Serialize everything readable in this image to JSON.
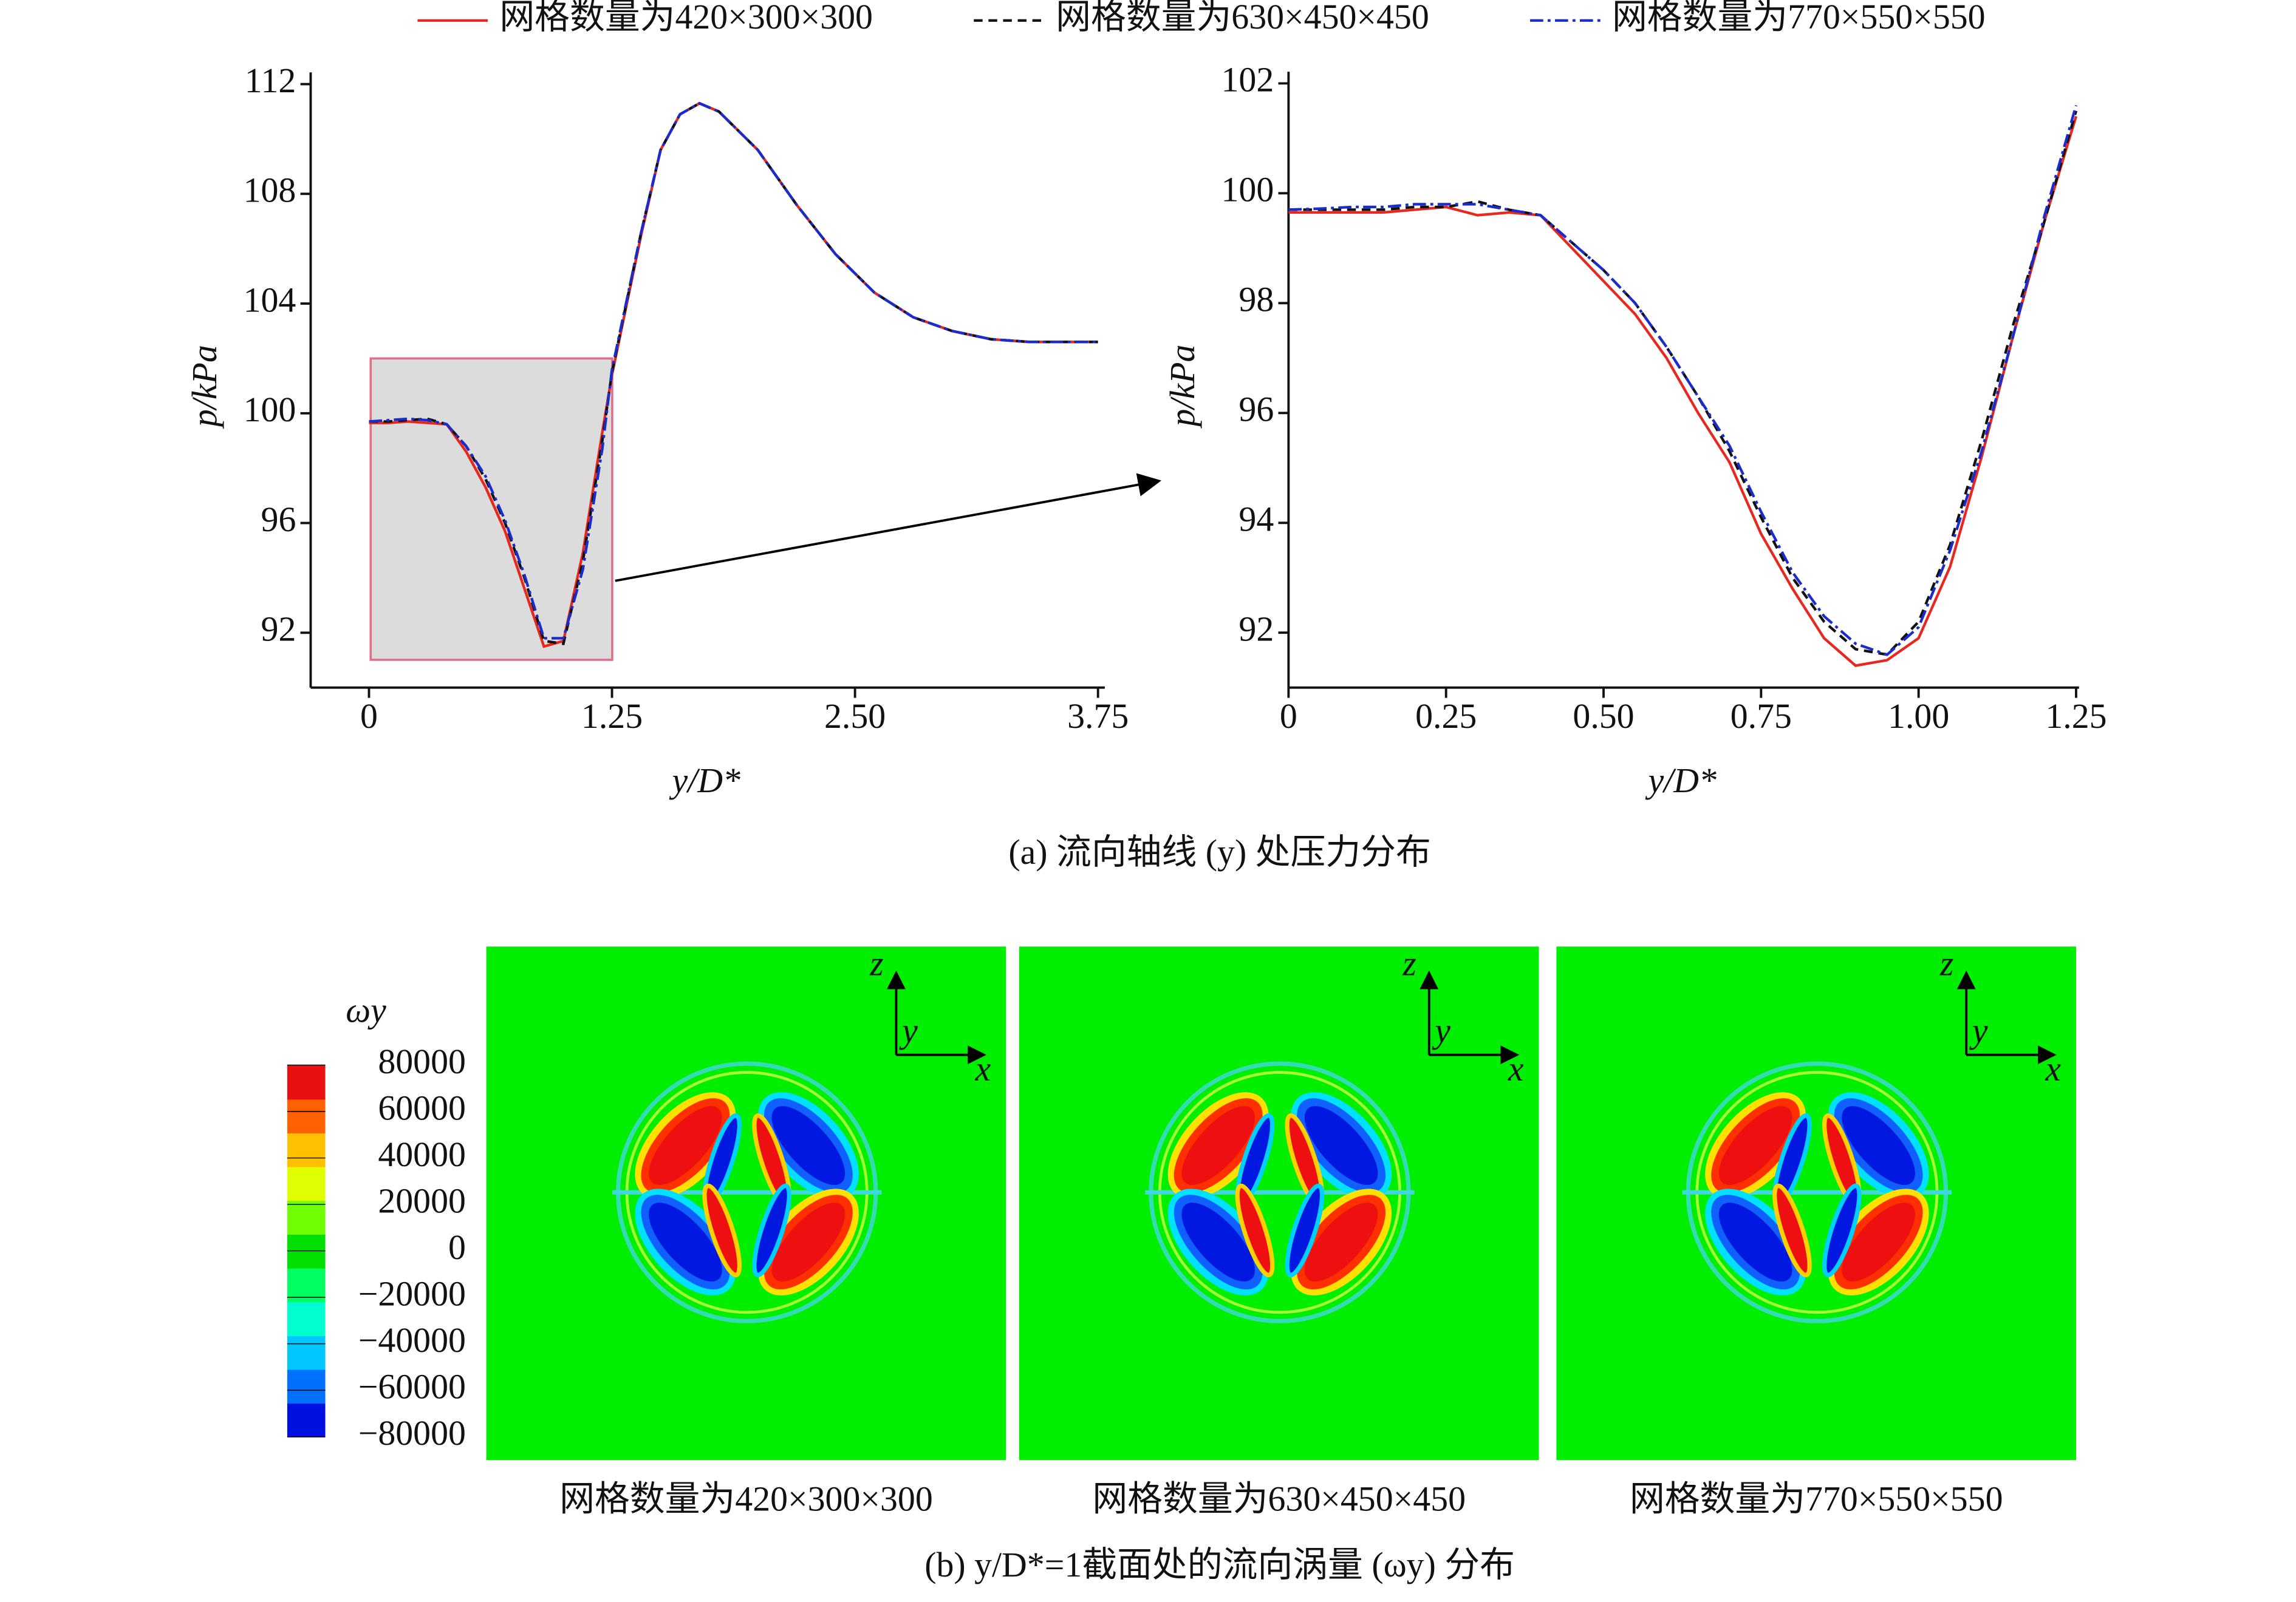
{
  "chart_data": [
    {
      "type": "line",
      "xlabel": "y/D*",
      "ylabel": "p/kPa",
      "caption": "(a) 流向轴线 (y) 处压力分布",
      "xlim": [
        -0.3,
        3.77
      ],
      "ylim": [
        90,
        112
      ],
      "xticks": [
        0,
        1.25,
        {
          "value": 2.5,
          "label": "2.50"
        },
        3.75
      ],
      "yticks": [
        92,
        96,
        100,
        104,
        108,
        112
      ],
      "x": [
        0,
        0.1,
        0.2,
        0.3,
        0.4,
        0.5,
        0.6,
        0.7,
        0.8,
        0.9,
        1.0,
        1.1,
        1.2,
        1.25,
        1.4,
        1.5,
        1.6,
        1.7,
        1.8,
        2.0,
        2.2,
        2.4,
        2.6,
        2.8,
        3.0,
        3.2,
        3.4,
        3.6,
        3.75
      ],
      "series": [
        {
          "name": "网格数量为420×300×300",
          "color": "#e8281e",
          "style": "solid",
          "values": [
            99.65,
            99.65,
            99.7,
            99.65,
            99.6,
            98.6,
            97.3,
            95.7,
            93.6,
            91.5,
            91.7,
            94.9,
            99.3,
            101.4,
            106.5,
            109.6,
            110.9,
            111.3,
            111.0,
            109.6,
            107.6,
            105.8,
            104.4,
            103.5,
            103.0,
            102.7,
            102.6,
            102.6,
            102.6
          ]
        },
        {
          "name": "网格数量为630×450×450",
          "color": "#111111",
          "style": "dashed",
          "values": [
            99.7,
            99.7,
            99.75,
            99.8,
            99.6,
            98.8,
            97.6,
            96.0,
            94.0,
            91.7,
            91.6,
            94.6,
            99.0,
            101.5,
            106.6,
            109.6,
            110.9,
            111.3,
            111.0,
            109.6,
            107.6,
            105.8,
            104.4,
            103.5,
            103.0,
            102.7,
            102.6,
            102.6,
            102.6
          ]
        },
        {
          "name": "网格数量为770×550×550",
          "color": "#1a2ccc",
          "style": "dashdot",
          "values": [
            99.7,
            99.75,
            99.8,
            99.75,
            99.6,
            98.8,
            97.7,
            96.1,
            94.1,
            91.8,
            91.8,
            94.3,
            98.7,
            101.6,
            106.6,
            109.6,
            110.9,
            111.3,
            111.0,
            109.6,
            107.6,
            105.8,
            104.4,
            103.5,
            103.0,
            102.7,
            102.6,
            102.6,
            102.6
          ]
        }
      ]
    },
    {
      "type": "line",
      "xlabel": "y/D*",
      "ylabel": "p/kPa",
      "xlim": [
        0,
        1.25
      ],
      "ylim": [
        91,
        102
      ],
      "xticks": [
        0,
        0.25,
        {
          "value": 0.5,
          "label": "0.50"
        },
        0.75,
        {
          "value": 1.0,
          "label": "1.00"
        },
        1.25
      ],
      "yticks": [
        92,
        94,
        96,
        98,
        100,
        102
      ],
      "x": [
        0,
        0.05,
        0.1,
        0.15,
        0.2,
        0.25,
        0.3,
        0.35,
        0.4,
        0.45,
        0.5,
        0.55,
        0.6,
        0.65,
        0.7,
        0.75,
        0.8,
        0.85,
        0.9,
        0.95,
        1.0,
        1.05,
        1.1,
        1.15,
        1.2,
        1.25
      ],
      "series": [
        {
          "color": "#e8281e",
          "style": "solid",
          "values": [
            99.65,
            99.65,
            99.65,
            99.65,
            99.7,
            99.75,
            99.6,
            99.65,
            99.6,
            99.0,
            98.4,
            97.8,
            97.0,
            96.0,
            95.1,
            93.8,
            92.8,
            91.9,
            91.4,
            91.5,
            91.9,
            93.2,
            95.2,
            97.4,
            99.5,
            101.4
          ]
        },
        {
          "color": "#111111",
          "style": "dashed",
          "values": [
            99.7,
            99.7,
            99.7,
            99.7,
            99.75,
            99.75,
            99.85,
            99.7,
            99.6,
            99.1,
            98.6,
            98.0,
            97.2,
            96.3,
            95.3,
            94.1,
            93.0,
            92.2,
            91.7,
            91.6,
            92.2,
            93.6,
            95.5,
            97.6,
            99.5,
            101.5
          ]
        },
        {
          "color": "#1a2ccc",
          "style": "dashdot",
          "values": [
            99.7,
            99.72,
            99.75,
            99.75,
            99.8,
            99.8,
            99.8,
            99.7,
            99.6,
            99.1,
            98.6,
            98.0,
            97.2,
            96.3,
            95.4,
            94.2,
            93.1,
            92.3,
            91.8,
            91.6,
            92.1,
            93.5,
            95.3,
            97.4,
            99.6,
            101.6
          ]
        }
      ]
    },
    {
      "type": "contour",
      "colorbar_title": "ωy",
      "clim": [
        -80000,
        80000
      ],
      "colorbar_ticks": [
        80000,
        60000,
        40000,
        20000,
        0,
        {
          "value": -20000,
          "label": "−20000"
        },
        {
          "value": -40000,
          "label": "−40000"
        },
        {
          "value": -60000,
          "label": "−60000"
        },
        {
          "value": -80000,
          "label": "−80000"
        }
      ],
      "colormap": [
        "#0010e0",
        "#0070ff",
        "#00c8ff",
        "#00ffd0",
        "#00ff60",
        "#00e000",
        "#70ff00",
        "#e0ff00",
        "#ffc000",
        "#ff6000",
        "#e81010"
      ],
      "panels": [
        "网格数量为420×300×300",
        "网格数量为630×450×450",
        "网格数量为770×550×550"
      ],
      "axis_labels": [
        "z",
        "y",
        "x"
      ],
      "caption": "(b) y/D*=1截面处的流向涡量 (ωy) 分布"
    }
  ]
}
